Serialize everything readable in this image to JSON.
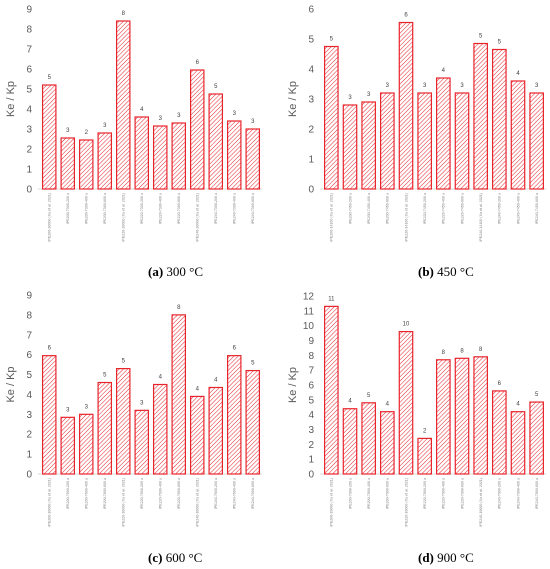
{
  "chart_data": [
    {
      "type": "bar",
      "caption_letter": "(a)",
      "caption_text": " 300 °C",
      "ylabel": "Ke / Kp",
      "ylim": [
        0,
        9
      ],
      "yticks": [
        0,
        1,
        2,
        3,
        4,
        5,
        6,
        7,
        8,
        9
      ],
      "grid": false,
      "bar_color": "#e8242b",
      "categories": [
        "IPE200-16000 (Xu et al. 2021)",
        "IPE200-7300-200 u",
        "IPE200-7300-400 u",
        "IPE200-7300-600 u",
        "IPE220-16000 (Xu et al. 2021)",
        "IPE220-7300-200 u",
        "IPE220-7300-400 u",
        "IPE220-7300-600 u",
        "IPE240-16000 (Xu et al. 2021)",
        "IPE240-7300-200 u",
        "IPE240-7300-400 u",
        "IPE240-7300-600 u"
      ],
      "values": [
        5.2,
        2.55,
        2.45,
        2.8,
        8.4,
        3.6,
        3.15,
        3.3,
        5.95,
        4.75,
        3.4,
        3.0
      ],
      "data_labels": [
        "5",
        "3",
        "2",
        "3",
        "8",
        "4",
        "3",
        "3",
        "6",
        "5",
        "3",
        "3"
      ]
    },
    {
      "type": "bar",
      "caption_letter": "(b)",
      "caption_text": " 450 °C",
      "ylabel": "Ke / Kp",
      "ylim": [
        0,
        6
      ],
      "yticks": [
        0,
        1,
        2,
        3,
        4,
        5,
        6
      ],
      "grid": false,
      "bar_color": "#e8242b",
      "categories": [
        "IPE200-14100 (Xu et al. 2021)",
        "IPE200-7450-200 u",
        "IPE200-7450-400 u",
        "IPE200-7450-600 u",
        "IPE220-14100 (Xu et al. 2021)",
        "IPE220-7450-200 u",
        "IPE220-7450-400 u",
        "IPE220-7450-600 u",
        "IPE240-14100 (Xu et al. 2021)",
        "IPE240-7450-200 u",
        "IPE240-7450-400 u",
        "IPE240-7450-600 u"
      ],
      "values": [
        4.75,
        2.8,
        2.9,
        3.2,
        5.55,
        3.2,
        3.7,
        3.2,
        4.85,
        4.65,
        3.6,
        3.2
      ],
      "data_labels": [
        "5",
        "3",
        "3",
        "3",
        "6",
        "3",
        "4",
        "3",
        "5",
        "5",
        "4",
        "3"
      ]
    },
    {
      "type": "bar",
      "caption_letter": "(c)",
      "caption_text": " 600 °C",
      "ylabel": "Ke / Kp",
      "ylim": [
        0,
        9
      ],
      "yticks": [
        0,
        1,
        2,
        3,
        4,
        5,
        6,
        7,
        8,
        9
      ],
      "grid": false,
      "bar_color": "#e8242b",
      "categories": [
        "IPE200-16000 (Xu et al. 2021)",
        "IPE200-7600-200 u",
        "IPE200-7600-400 u",
        "IPE200-7600-600 u",
        "IPE220-16000 (Xu et al. 2021)",
        "IPE220-7600-200 u",
        "IPE220-7600-400 u",
        "IPE220-7600-600 u",
        "IPE240-16000 (Xu et al. 2021)",
        "IPE240-7600-200 u",
        "IPE240-7600-400 u",
        "IPE240-7600-600 u"
      ],
      "values": [
        5.95,
        2.85,
        3.0,
        4.6,
        5.3,
        3.2,
        4.5,
        8.0,
        3.9,
        4.35,
        5.95,
        5.2
      ],
      "data_labels": [
        "6",
        "3",
        "3",
        "5",
        "5",
        "3",
        "4",
        "8",
        "4",
        "4",
        "6",
        "5"
      ]
    },
    {
      "type": "bar",
      "caption_letter": "(d)",
      "caption_text": " 900 °C",
      "ylabel": "Ke / Kp",
      "ylim": [
        0,
        12
      ],
      "yticks": [
        0,
        1,
        2,
        3,
        4,
        5,
        6,
        7,
        8,
        9,
        10,
        11,
        12
      ],
      "grid": false,
      "bar_color": "#e8242b",
      "categories": [
        "IPE200-19000 (Xu et al. 2021)",
        "IPE200-7900-200 u",
        "IPE200-7900-400 u",
        "IPE200-7900-600 u",
        "IPE220-19000 (Xu et al. 2021)",
        "IPE220-7900-200 u",
        "IPE220-7900-400 u",
        "IPE220-7900-600 u",
        "IPE240-19000 (Xu et al. 2021)",
        "IPE240-7900-200 u",
        "IPE240-7900-400 u",
        "IPE240-7900-600 u"
      ],
      "values": [
        11.3,
        4.4,
        4.8,
        4.2,
        9.6,
        2.4,
        7.7,
        7.8,
        7.9,
        5.6,
        4.2,
        4.85
      ],
      "data_labels": [
        "11",
        "4",
        "5",
        "4",
        "10",
        "2",
        "8",
        "8",
        "8",
        "6",
        "4",
        "5"
      ]
    }
  ]
}
